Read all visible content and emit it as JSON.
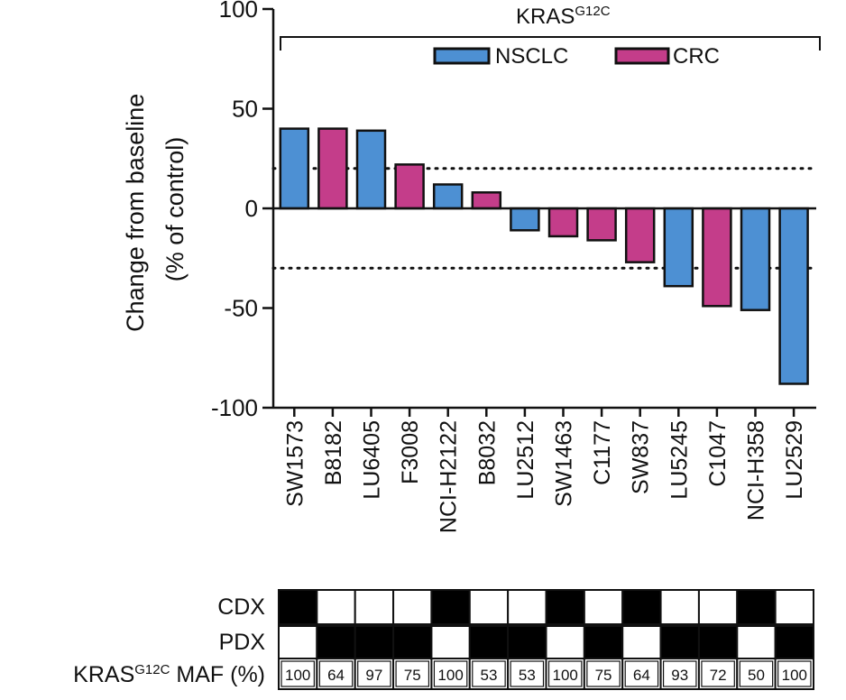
{
  "chart_data": {
    "type": "bar",
    "title_main": "KRAS",
    "title_sup": "G12C",
    "ylabel_line1": "Change from baseline",
    "ylabel_line2": "(% of control)",
    "ylim": [
      -100,
      100
    ],
    "yticks": [
      100,
      50,
      0,
      -50,
      -100
    ],
    "reference_lines": [
      20,
      -30
    ],
    "categories": [
      "SW1573",
      "B8182",
      "LU6405",
      "F3008",
      "NCI-H2122",
      "B8032",
      "LU2512",
      "SW1463",
      "C1177",
      "SW837",
      "LU5245",
      "C1047",
      "NCI-H358",
      "LU2529"
    ],
    "values": [
      40,
      40,
      39,
      22,
      12,
      8,
      -11,
      -14,
      -16,
      -27,
      -39,
      -49,
      -51,
      -88
    ],
    "groups": [
      "NSCLC",
      "CRC",
      "NSCLC",
      "CRC",
      "NSCLC",
      "CRC",
      "NSCLC",
      "CRC",
      "CRC",
      "CRC",
      "NSCLC",
      "CRC",
      "NSCLC",
      "NSCLC"
    ],
    "legend": [
      {
        "name": "NSCLC",
        "color": "#4d90d3"
      },
      {
        "name": "CRC",
        "color": "#c43d8a"
      }
    ],
    "legend_position": "top",
    "grid": false,
    "table": {
      "rows": [
        {
          "label": "CDX",
          "filled": [
            true,
            false,
            false,
            false,
            true,
            false,
            false,
            true,
            false,
            true,
            false,
            false,
            true,
            false
          ]
        },
        {
          "label": "PDX",
          "filled": [
            false,
            true,
            true,
            true,
            false,
            true,
            true,
            false,
            true,
            false,
            true,
            true,
            false,
            true
          ]
        }
      ],
      "maf_label_main": "KRAS",
      "maf_label_sup": "G12C",
      "maf_label_suffix": " MAF (%)",
      "maf_values": [
        "100",
        "64",
        "97",
        "75",
        "100",
        "53",
        "53",
        "100",
        "75",
        "64",
        "93",
        "72",
        "50",
        "100"
      ]
    }
  }
}
